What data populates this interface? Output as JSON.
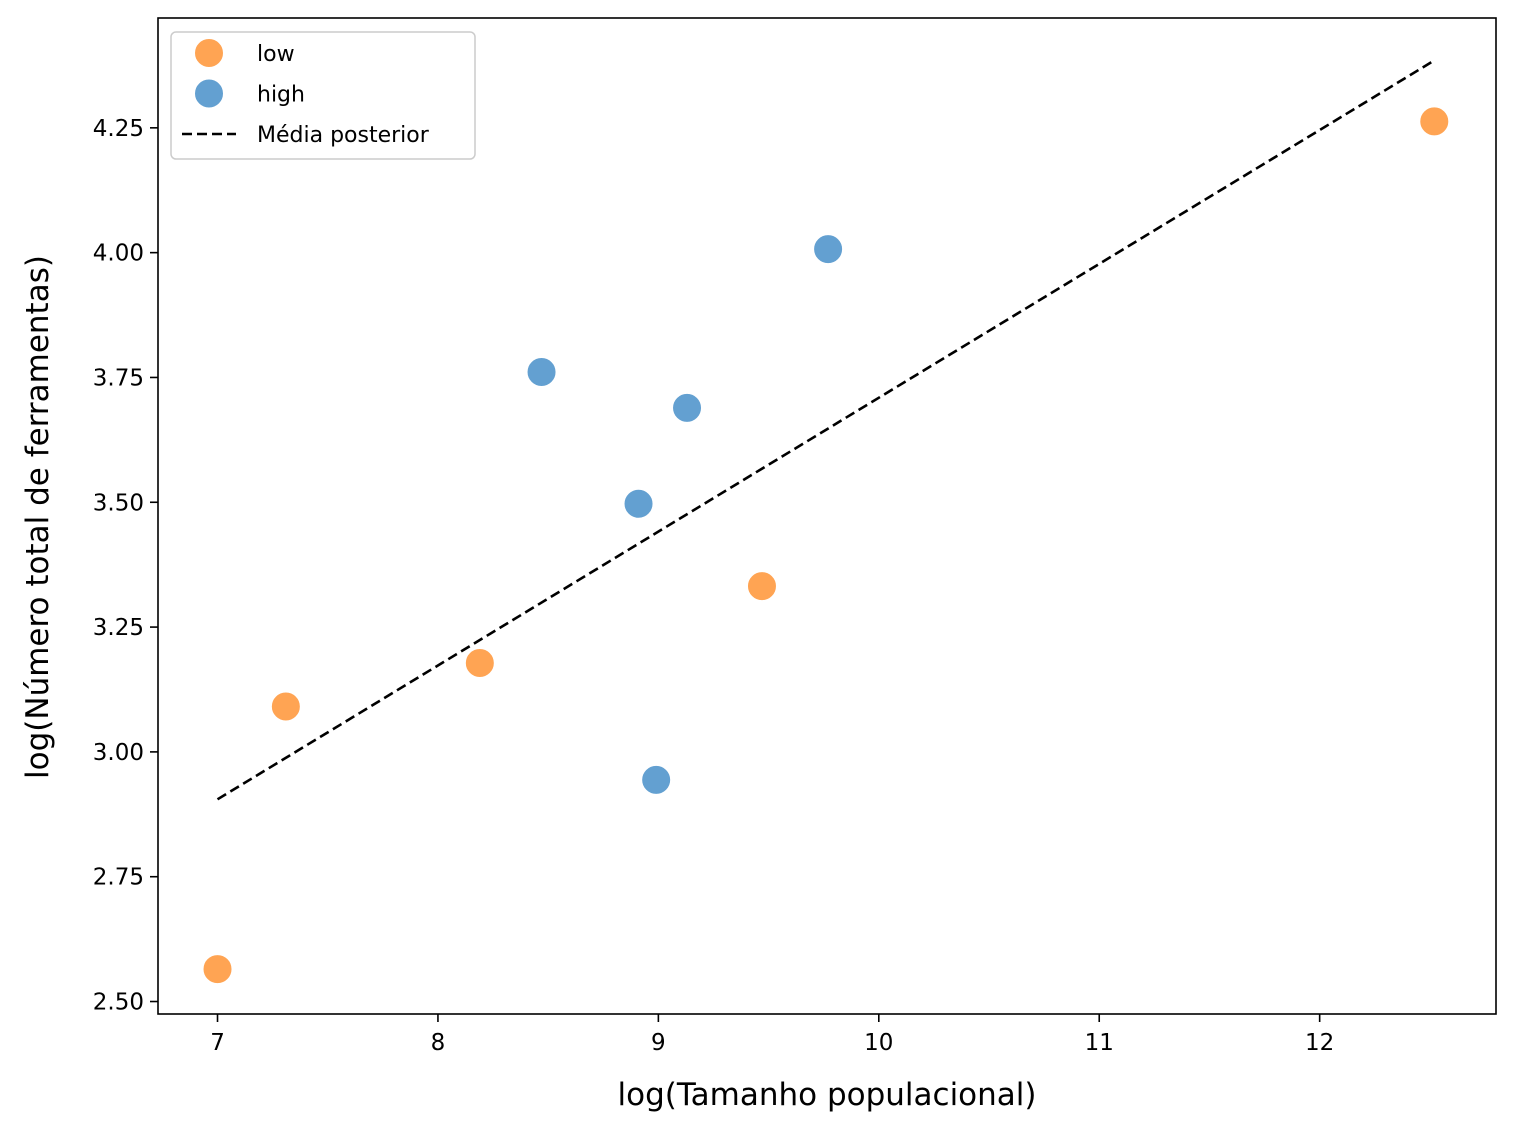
{
  "chart_data": {
    "type": "scatter",
    "title": "",
    "xlabel": "log(Tamanho populacional)",
    "ylabel": "log(Número total de ferramentas)",
    "xlim": [
      6.73,
      12.8
    ],
    "ylim": [
      2.475,
      4.47
    ],
    "xticks": [
      7,
      8,
      9,
      10,
      11,
      12
    ],
    "xtick_labels": [
      "7",
      "8",
      "9",
      "10",
      "11",
      "12"
    ],
    "yticks": [
      2.5,
      2.75,
      3.0,
      3.25,
      3.5,
      3.75,
      4.0,
      4.25
    ],
    "ytick_labels": [
      "2.50",
      "2.75",
      "3.00",
      "3.25",
      "3.50",
      "3.75",
      "4.00",
      "4.25"
    ],
    "grid": false,
    "legend_position": "top-left",
    "series": [
      {
        "name": "low",
        "color": "#ff9f4a",
        "points": [
          {
            "x": 7.0,
            "y": 2.565
          },
          {
            "x": 7.31,
            "y": 3.091
          },
          {
            "x": 8.19,
            "y": 3.178
          },
          {
            "x": 9.47,
            "y": 3.332
          },
          {
            "x": 12.52,
            "y": 4.263
          }
        ]
      },
      {
        "name": "high",
        "color": "#5b9bcf",
        "points": [
          {
            "x": 8.47,
            "y": 3.761
          },
          {
            "x": 8.91,
            "y": 3.497
          },
          {
            "x": 8.99,
            "y": 2.944
          },
          {
            "x": 9.13,
            "y": 3.689
          },
          {
            "x": 9.77,
            "y": 4.007
          }
        ]
      }
    ],
    "lines": [
      {
        "name": "Média posterior",
        "style": "dashed",
        "color": "#000000",
        "points": [
          {
            "x": 7.0,
            "y": 2.905
          },
          {
            "x": 12.52,
            "y": 4.385
          }
        ]
      }
    ]
  }
}
